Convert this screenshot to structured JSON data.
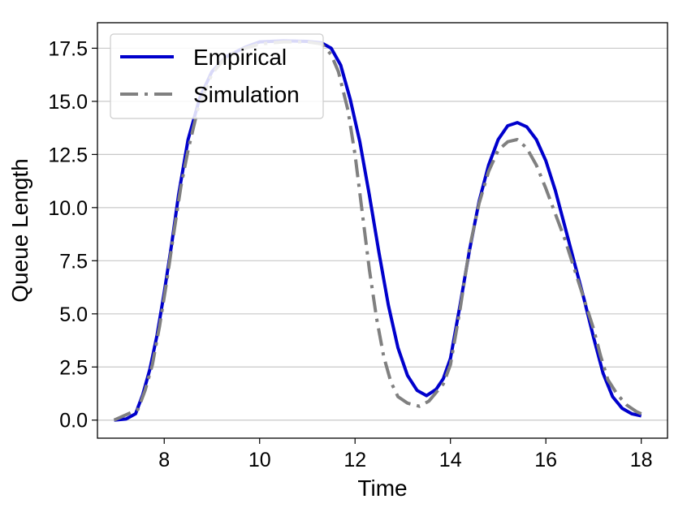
{
  "chart_data": {
    "type": "line",
    "title": "",
    "xlabel": "Time",
    "ylabel": "Queue Length",
    "xlim": [
      6.6,
      18.55
    ],
    "ylim": [
      -0.85,
      18.7
    ],
    "xticks": [
      8,
      10,
      12,
      14,
      16,
      18
    ],
    "xtick_labels": [
      "8",
      "10",
      "12",
      "14",
      "16",
      "18"
    ],
    "yticks": [
      0.0,
      2.5,
      5.0,
      7.5,
      10.0,
      12.5,
      15.0,
      17.5
    ],
    "ytick_labels": [
      "0.0",
      "2.5",
      "5.0",
      "7.5",
      "10.0",
      "12.5",
      "15.0",
      "17.5"
    ],
    "grid": "horizontal",
    "legend_position": "upper-left",
    "series": [
      {
        "name": "Empirical",
        "color": "#0000cc",
        "style": "solid",
        "points": [
          [
            6.95,
            0.0
          ],
          [
            7.2,
            0.05
          ],
          [
            7.4,
            0.3
          ],
          [
            7.55,
            1.2
          ],
          [
            7.7,
            2.4
          ],
          [
            7.85,
            4.0
          ],
          [
            8.0,
            6.0
          ],
          [
            8.15,
            8.2
          ],
          [
            8.3,
            10.6
          ],
          [
            8.5,
            13.2
          ],
          [
            8.75,
            15.2
          ],
          [
            9.0,
            16.4
          ],
          [
            9.3,
            17.1
          ],
          [
            9.7,
            17.55
          ],
          [
            10.0,
            17.8
          ],
          [
            10.5,
            17.85
          ],
          [
            11.0,
            17.82
          ],
          [
            11.3,
            17.75
          ],
          [
            11.5,
            17.5
          ],
          [
            11.7,
            16.7
          ],
          [
            11.9,
            15.1
          ],
          [
            12.1,
            13.1
          ],
          [
            12.3,
            10.6
          ],
          [
            12.5,
            7.9
          ],
          [
            12.7,
            5.4
          ],
          [
            12.9,
            3.4
          ],
          [
            13.1,
            2.1
          ],
          [
            13.3,
            1.4
          ],
          [
            13.5,
            1.15
          ],
          [
            13.7,
            1.45
          ],
          [
            13.85,
            1.95
          ],
          [
            14.0,
            2.9
          ],
          [
            14.2,
            5.4
          ],
          [
            14.4,
            8.0
          ],
          [
            14.6,
            10.3
          ],
          [
            14.8,
            12.0
          ],
          [
            15.0,
            13.2
          ],
          [
            15.2,
            13.85
          ],
          [
            15.4,
            14.0
          ],
          [
            15.6,
            13.8
          ],
          [
            15.8,
            13.2
          ],
          [
            16.0,
            12.2
          ],
          [
            16.2,
            10.8
          ],
          [
            16.4,
            9.1
          ],
          [
            16.6,
            7.4
          ],
          [
            16.8,
            5.7
          ],
          [
            17.0,
            3.9
          ],
          [
            17.2,
            2.2
          ],
          [
            17.4,
            1.1
          ],
          [
            17.6,
            0.55
          ],
          [
            17.8,
            0.3
          ],
          [
            18.0,
            0.2
          ]
        ]
      },
      {
        "name": "Simulation",
        "color": "#808080",
        "style": "dashdot",
        "points": [
          [
            6.95,
            0.0
          ],
          [
            7.2,
            0.25
          ],
          [
            7.45,
            0.5
          ],
          [
            7.6,
            1.4
          ],
          [
            7.75,
            2.6
          ],
          [
            7.9,
            4.4
          ],
          [
            8.05,
            6.5
          ],
          [
            8.2,
            8.8
          ],
          [
            8.35,
            11.0
          ],
          [
            8.5,
            12.7
          ],
          [
            8.7,
            14.6
          ],
          [
            9.0,
            16.3
          ],
          [
            9.3,
            17.1
          ],
          [
            9.7,
            17.5
          ],
          [
            10.0,
            17.7
          ],
          [
            10.5,
            17.8
          ],
          [
            11.0,
            17.8
          ],
          [
            11.3,
            17.7
          ],
          [
            11.5,
            17.2
          ],
          [
            11.65,
            16.4
          ],
          [
            11.85,
            14.6
          ],
          [
            12.0,
            12.5
          ],
          [
            12.15,
            9.8
          ],
          [
            12.3,
            7.1
          ],
          [
            12.45,
            4.8
          ],
          [
            12.6,
            3.0
          ],
          [
            12.75,
            1.8
          ],
          [
            12.9,
            1.1
          ],
          [
            13.1,
            0.8
          ],
          [
            13.35,
            0.65
          ],
          [
            13.55,
            0.9
          ],
          [
            13.7,
            1.3
          ],
          [
            13.85,
            1.7
          ],
          [
            14.0,
            2.6
          ],
          [
            14.2,
            5.2
          ],
          [
            14.4,
            8.1
          ],
          [
            14.6,
            10.2
          ],
          [
            14.8,
            11.7
          ],
          [
            15.0,
            12.7
          ],
          [
            15.2,
            13.1
          ],
          [
            15.4,
            13.2
          ],
          [
            15.6,
            12.8
          ],
          [
            15.8,
            12.0
          ],
          [
            16.0,
            10.9
          ],
          [
            16.2,
            9.7
          ],
          [
            16.4,
            8.5
          ],
          [
            16.6,
            7.1
          ],
          [
            16.8,
            5.7
          ],
          [
            17.0,
            4.3
          ],
          [
            17.15,
            3.0
          ],
          [
            17.3,
            1.9
          ],
          [
            17.5,
            1.2
          ],
          [
            17.7,
            0.7
          ],
          [
            17.9,
            0.4
          ],
          [
            18.0,
            0.3
          ]
        ]
      }
    ]
  }
}
